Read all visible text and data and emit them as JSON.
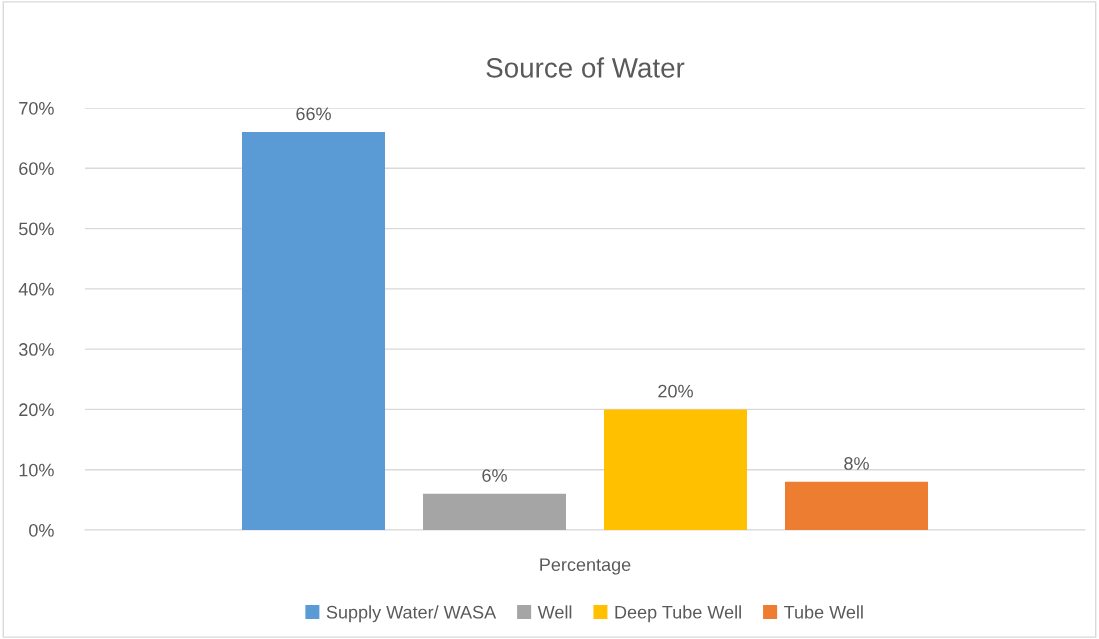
{
  "chart_data": {
    "type": "bar",
    "title": "Source of Water",
    "categories": [
      "Percentage"
    ],
    "series": [
      {
        "name": "Supply Water/ WASA",
        "color": "#5b9bd5",
        "values": [
          66
        ],
        "value_labels": [
          "66%"
        ]
      },
      {
        "name": "Well",
        "color": "#a5a5a5",
        "values": [
          6
        ],
        "value_labels": [
          "6%"
        ]
      },
      {
        "name": "Deep Tube Well",
        "color": "#ffc000",
        "values": [
          20
        ],
        "value_labels": [
          "20%"
        ]
      },
      {
        "name": "Tube Well",
        "color": "#ed7d31",
        "values": [
          8
        ],
        "value_labels": [
          "8%"
        ]
      }
    ],
    "ylim": [
      0,
      70
    ],
    "yticks": [
      {
        "value": 0,
        "label": "0%"
      },
      {
        "value": 10,
        "label": "10%"
      },
      {
        "value": 20,
        "label": "20%"
      },
      {
        "value": 30,
        "label": "30%"
      },
      {
        "value": 40,
        "label": "40%"
      },
      {
        "value": 50,
        "label": "50%"
      },
      {
        "value": 60,
        "label": "60%"
      },
      {
        "value": 70,
        "label": "70%"
      }
    ],
    "grid": "y",
    "legend": "bottom"
  }
}
